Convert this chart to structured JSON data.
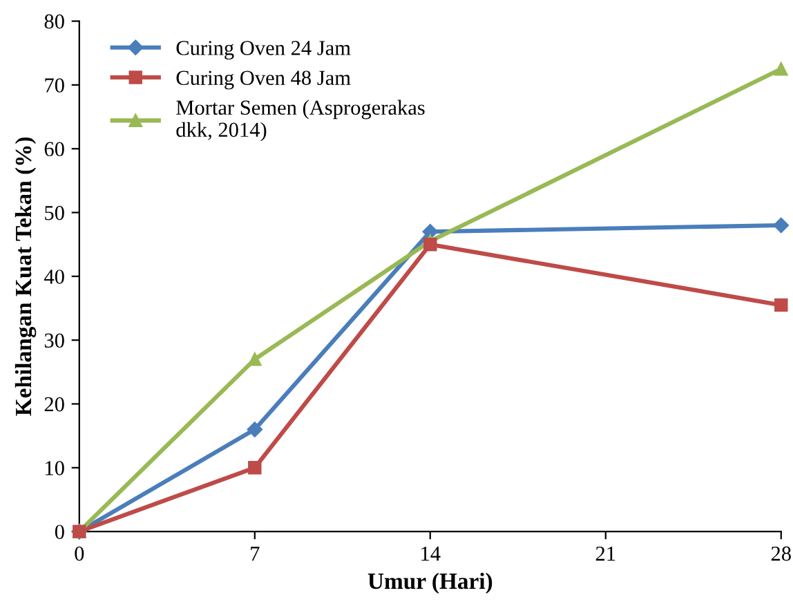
{
  "chart_data": {
    "type": "line",
    "xlabel": "Umur (Hari)",
    "ylabel": "Kehilangan Kuat Tekan (%)",
    "x": [
      0,
      7,
      14,
      28
    ],
    "series": [
      {
        "name": "Curing Oven 24 Jam",
        "color": "#4a7ebb",
        "marker": "diamond",
        "values": [
          0,
          16,
          47,
          48
        ]
      },
      {
        "name": "Curing Oven 48 Jam",
        "color": "#be4b48",
        "marker": "square",
        "values": [
          0,
          10,
          45,
          35.5
        ]
      },
      {
        "name": "Mortar Semen (Asprogerakas\ndkk, 2014)",
        "color": "#98b954",
        "marker": "triangle",
        "values": [
          0,
          27,
          45.5,
          72.5
        ]
      }
    ],
    "xlim": [
      0,
      28
    ],
    "xticks": [
      0,
      7,
      14,
      21,
      28
    ],
    "ylim": [
      0,
      80
    ],
    "yticks": [
      0,
      10,
      20,
      30,
      40,
      50,
      60,
      70,
      80
    ],
    "grid": false,
    "legend": "top left"
  }
}
